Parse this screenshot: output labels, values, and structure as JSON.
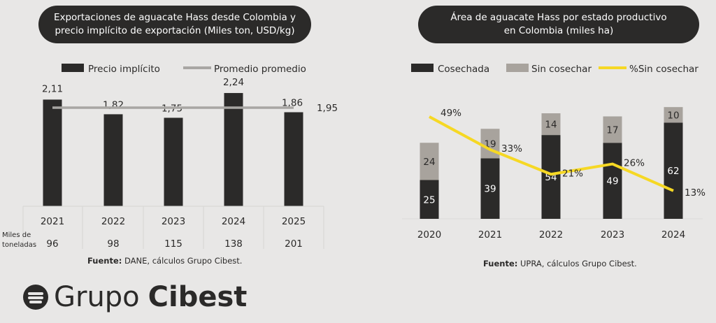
{
  "colors": {
    "dark": "#2b2a29",
    "gray": "#a8a39d",
    "yellow": "#f6d824",
    "avg": "#a8a6a3"
  },
  "logo": {
    "text1": "Grupo",
    "text2": "Cibest"
  },
  "chart_data": [
    {
      "type": "bar",
      "title": "Exportaciones de aguacate Hass desde Colombia y precio implícito de exportación (Miles ton, USD/kg)",
      "categories": [
        "2021",
        "2022",
        "2023",
        "2024",
        "2025"
      ],
      "series": [
        {
          "name": "Precio implícito",
          "values": [
            2.11,
            1.82,
            1.75,
            2.24,
            1.86
          ],
          "labels": [
            "2,11",
            "1,82",
            "1,75",
            "2,24",
            "1,86"
          ]
        },
        {
          "name": "Promedio promedio",
          "type": "line",
          "value": 1.95,
          "label": "1,95"
        }
      ],
      "table": {
        "row_label": "Miles de toneladas",
        "values": [
          "96",
          "98",
          "115",
          "138",
          "201"
        ]
      },
      "ylim": [
        0,
        2.5
      ],
      "source_bold": "Fuente:",
      "source": " DANE, cálculos Grupo Cibest."
    },
    {
      "type": "bar",
      "stacked": true,
      "title": "Área de aguacate Hass por estado productivo en Colombia (miles ha)",
      "categories": [
        "2020",
        "2021",
        "2022",
        "2023",
        "2024"
      ],
      "series": [
        {
          "name": "Cosechada",
          "values": [
            25,
            39,
            54,
            49,
            62
          ]
        },
        {
          "name": "Sin cosechar",
          "values": [
            24,
            19,
            14,
            17,
            10
          ]
        },
        {
          "name": "%Sin cosechar",
          "type": "line",
          "values": [
            49,
            33,
            21,
            26,
            13
          ],
          "labels": [
            "49%",
            "33%",
            "21%",
            "26%",
            "13%"
          ]
        }
      ],
      "source_bold": "Fuente:",
      "source": " UPRA, cálculos Grupo Cibest."
    }
  ]
}
